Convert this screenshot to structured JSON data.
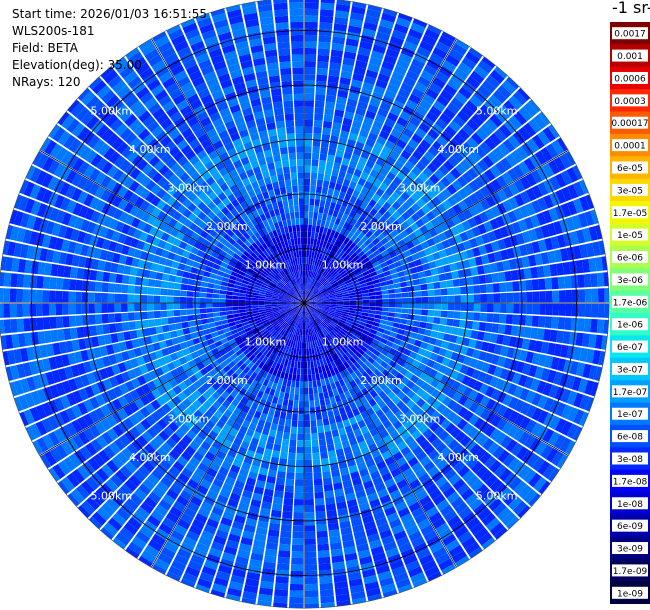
{
  "header": {
    "start_time": "Start time: 2026/01/03 16:51:55",
    "instrument": "WLS200s-181",
    "field": "Field: BETA",
    "elevation": "Elevation(deg): 35.00",
    "nrays": "NRays: 120"
  },
  "colorbar_title": "-1 sr-",
  "chart_data": {
    "type": "heatmap",
    "projection": "polar",
    "range_rings_km": [
      1,
      2,
      3,
      4,
      5
    ],
    "ring_labels": [
      "1.00km",
      "2.00km",
      "3.00km",
      "4.00km",
      "5.00km"
    ],
    "max_range_km": 5.6,
    "n_rays": 120,
    "colorbar": {
      "scale": "log",
      "tick_labels": [
        "0.0017",
        "0.001",
        "0.0006",
        "0.0003",
        "0.00017",
        "0.0001",
        "6e-05",
        "3e-05",
        "1.7e-05",
        "1e-05",
        "6e-06",
        "3e-06",
        "1.7e-06",
        "1e-06",
        "6e-07",
        "3e-07",
        "1.7e-07",
        "1e-07",
        "6e-08",
        "3e-08",
        "1.7e-08",
        "1e-08",
        "6e-09",
        "3e-09",
        "1.7e-09",
        "1e-09"
      ],
      "colors": [
        "#800000",
        "#b40000",
        "#e60000",
        "#ff2800",
        "#ff5a00",
        "#ff8c00",
        "#ffb400",
        "#ffd700",
        "#f5f500",
        "#d2ff28",
        "#aaff50",
        "#82ff78",
        "#5affa0",
        "#32ffc8",
        "#0ae6ee",
        "#00c8ff",
        "#00a0ff",
        "#0078ff",
        "#0050ff",
        "#0028ff",
        "#0000f5",
        "#0000d2",
        "#0000aa",
        "#000082",
        "#00005a",
        "#000040"
      ]
    },
    "typical_values": {
      "inner_core_km": [
        0,
        1.5
      ],
      "inner_core_value": "1.7e-08",
      "cyan_band_km": [
        2.3,
        3.3
      ],
      "cyan_band_value": "1.7e-07",
      "outer_value": "6e-08"
    }
  }
}
